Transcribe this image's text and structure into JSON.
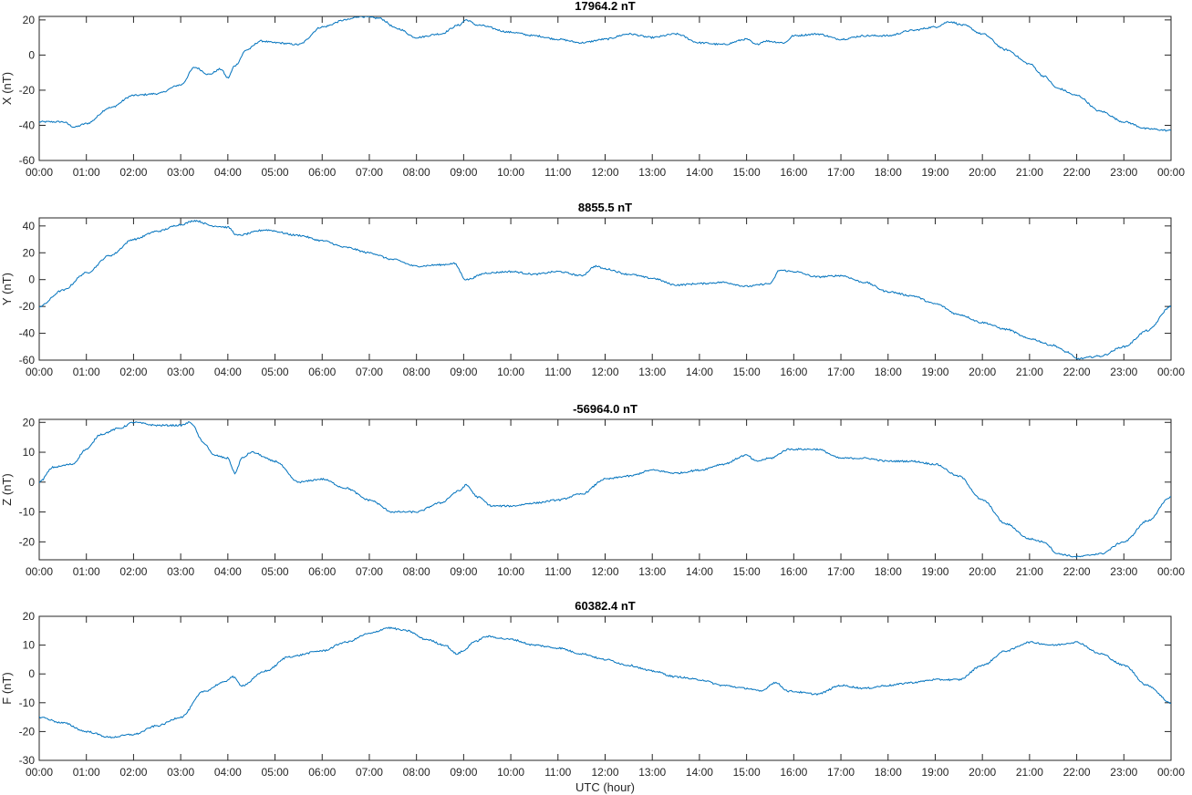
{
  "xlabel": "UTC (hour)",
  "xticks": [
    "00:00",
    "01:00",
    "02:00",
    "03:00",
    "04:00",
    "05:00",
    "06:00",
    "07:00",
    "08:00",
    "09:00",
    "10:00",
    "11:00",
    "12:00",
    "13:00",
    "14:00",
    "15:00",
    "16:00",
    "17:00",
    "18:00",
    "19:00",
    "20:00",
    "21:00",
    "22:00",
    "23:00",
    "00:00"
  ],
  "line_color": "#0072bd",
  "chart_data": [
    {
      "type": "line",
      "title": "17964.2 nT",
      "ylabel": "X (nT)",
      "xlim": [
        0,
        24
      ],
      "ylim": [
        -60,
        22
      ],
      "yticks": [
        -60,
        -40,
        -20,
        0,
        20
      ],
      "x": [
        0,
        0.5,
        0.75,
        1,
        1.5,
        2,
        2.5,
        3,
        3.3,
        3.6,
        3.85,
        4.0,
        4.15,
        4.4,
        4.7,
        5,
        5.5,
        6,
        6.5,
        6.8,
        7.2,
        7.6,
        8,
        8.5,
        8.9,
        9.05,
        9.3,
        10,
        10.5,
        11,
        11.5,
        12,
        12.5,
        13,
        13.5,
        14,
        14.5,
        15,
        15.2,
        15.4,
        15.8,
        16,
        16.5,
        17,
        17.5,
        18,
        18.5,
        19,
        19.3,
        19.6,
        20,
        20.5,
        21,
        21.3,
        21.6,
        22,
        22.5,
        23,
        23.5,
        24
      ],
      "y": [
        -38,
        -38,
        -41,
        -39,
        -30,
        -23,
        -22,
        -17,
        -7,
        -11,
        -8,
        -13,
        -6,
        3,
        8,
        7,
        6,
        16,
        20,
        22,
        21,
        15,
        10,
        12,
        17,
        20,
        17,
        13,
        11,
        9,
        7,
        9,
        12,
        10,
        12,
        7,
        6,
        9,
        6,
        8,
        7,
        11,
        12,
        9,
        11,
        11,
        14,
        16,
        19,
        17,
        12,
        3,
        -5,
        -12,
        -19,
        -23,
        -32,
        -38,
        -42,
        -43
      ]
    },
    {
      "type": "line",
      "title": "8855.5 nT",
      "ylabel": "Y (nT)",
      "xlim": [
        0,
        24
      ],
      "ylim": [
        -60,
        46
      ],
      "yticks": [
        -60,
        -40,
        -20,
        0,
        20,
        40
      ],
      "x": [
        0,
        0.5,
        1,
        1.5,
        2,
        2.5,
        3,
        3.3,
        3.7,
        4.0,
        4.2,
        4.8,
        5.5,
        6,
        6.5,
        7,
        7.5,
        8,
        8.5,
        8.8,
        9.05,
        9.5,
        10,
        10.5,
        11,
        11.5,
        11.8,
        12,
        12.5,
        13,
        13.5,
        14,
        14.5,
        15,
        15.5,
        15.7,
        16,
        16.5,
        17,
        17.5,
        18,
        18.5,
        19,
        19.5,
        20,
        20.5,
        21,
        21.5,
        21.8,
        22,
        22.5,
        23,
        23.5,
        24
      ],
      "y": [
        -20,
        -8,
        5,
        18,
        30,
        36,
        41,
        44,
        40,
        39,
        33,
        37,
        33,
        29,
        24,
        20,
        15,
        10,
        11,
        12,
        0,
        5,
        6,
        4,
        6,
        3,
        10,
        8,
        4,
        1,
        -4,
        -3,
        -2,
        -5,
        -3,
        7,
        6,
        2,
        3,
        -2,
        -9,
        -12,
        -18,
        -26,
        -32,
        -37,
        -44,
        -49,
        -54,
        -59,
        -57,
        -50,
        -38,
        -20
      ]
    },
    {
      "type": "line",
      "title": "-56964.0 nT",
      "ylabel": "Z (nT)",
      "xlim": [
        0,
        24
      ],
      "ylim": [
        -26,
        21
      ],
      "yticks": [
        -20,
        -10,
        0,
        10,
        20
      ],
      "x": [
        0,
        0.3,
        0.7,
        1,
        1.3,
        1.7,
        2,
        2.5,
        3,
        3.2,
        3.5,
        3.7,
        4.0,
        4.15,
        4.3,
        4.5,
        5,
        5.5,
        6,
        6.5,
        7,
        7.5,
        8,
        8.5,
        8.9,
        9.05,
        9.3,
        9.6,
        10,
        10.5,
        11,
        11.5,
        12,
        12.5,
        13,
        13.5,
        14,
        14.5,
        15,
        15.2,
        15.5,
        15.9,
        16.5,
        17,
        17.5,
        18,
        18.5,
        19,
        19.5,
        20,
        20.5,
        21,
        21.3,
        21.6,
        22,
        22.5,
        23,
        23.5,
        24
      ],
      "y": [
        0,
        5,
        6,
        11,
        16,
        18,
        20,
        19,
        19,
        20,
        13,
        9,
        8,
        3,
        8,
        10,
        7,
        0,
        1,
        -2,
        -6,
        -10,
        -10,
        -7,
        -3,
        -1,
        -5,
        -8,
        -8,
        -7,
        -6,
        -4,
        1,
        2,
        4,
        3,
        4,
        6,
        9,
        7,
        8,
        11,
        11,
        8,
        8,
        7,
        7,
        6,
        2,
        -6,
        -14,
        -19,
        -20,
        -24,
        -25,
        -24,
        -20,
        -13,
        -5
      ]
    },
    {
      "type": "line",
      "title": "60382.4 nT",
      "ylabel": "F (nT)",
      "xlim": [
        0,
        24
      ],
      "ylim": [
        -30,
        20
      ],
      "yticks": [
        -30,
        -20,
        -10,
        0,
        10,
        20
      ],
      "x": [
        0,
        0.5,
        1,
        1.5,
        2,
        2.5,
        3,
        3.5,
        3.9,
        4.1,
        4.3,
        4.8,
        5.3,
        6,
        6.5,
        7,
        7.4,
        7.8,
        8.2,
        8.6,
        8.85,
        9.0,
        9.2,
        9.5,
        10,
        10.5,
        11,
        11.5,
        12,
        12.5,
        13,
        13.5,
        14,
        14.5,
        15,
        15.3,
        15.6,
        15.9,
        16.5,
        17,
        17.5,
        18,
        18.5,
        19,
        19.5,
        20,
        20.5,
        21,
        21.5,
        22,
        22.5,
        23,
        23.5,
        24
      ],
      "y": [
        -15,
        -17,
        -20,
        -22,
        -21,
        -18,
        -15,
        -6,
        -3,
        -1,
        -4,
        1,
        6,
        8,
        11,
        14,
        16,
        15,
        12,
        10,
        7,
        8,
        11,
        13,
        12,
        10,
        9,
        7,
        5,
        3,
        1,
        -1,
        -2,
        -4,
        -5,
        -6,
        -3,
        -6,
        -7,
        -4,
        -5,
        -4,
        -3,
        -2,
        -2,
        3,
        8,
        11,
        10,
        11,
        7,
        3,
        -4,
        -10
      ]
    }
  ]
}
